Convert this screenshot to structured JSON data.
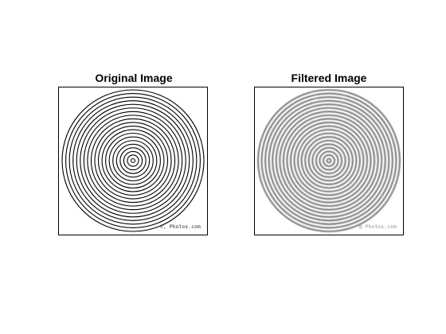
{
  "panels": [
    {
      "title": "Original Image",
      "watermark": "©, Photos.com",
      "ring_count": 20,
      "ring_color": "#000000"
    },
    {
      "title": "Filtered Image",
      "watermark": "@ Photos.com",
      "ring_count": 20,
      "ring_color": "#555555"
    }
  ]
}
